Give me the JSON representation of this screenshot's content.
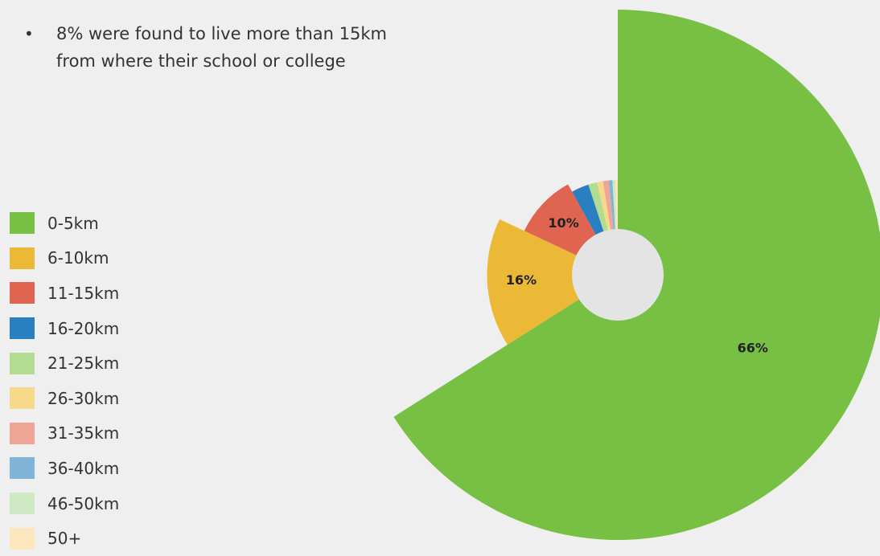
{
  "bullet": {
    "marker": "•",
    "text_line1": "8% were found to live more than 15km",
    "text_line2": "from where their school or college"
  },
  "chart_data": {
    "type": "pie",
    "variant": "polar-area (radius proportional to share)",
    "categories": [
      "0-5km",
      "6-10km",
      "11-15km",
      "16-20km",
      "21-25km",
      "26-30km",
      "31-35km",
      "36-40km",
      "46-50km",
      "50+"
    ],
    "values": [
      66,
      16,
      10,
      3,
      1.5,
      1,
      1,
      0.6,
      0.5,
      0.4
    ],
    "labels_shown": [
      "66%",
      "16%",
      "10%",
      "",
      "",
      "",
      "",
      "",
      "",
      ""
    ],
    "colors": [
      "#77c044",
      "#ebb935",
      "#e06550",
      "#2a7fc1",
      "#b2dc92",
      "#f7d98c",
      "#eea596",
      "#80b5d9",
      "#cfe9c4",
      "#fbe6bd"
    ],
    "center_hole_color": "#e4e4e4",
    "legend_position": "left"
  }
}
